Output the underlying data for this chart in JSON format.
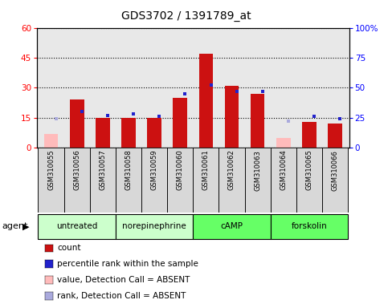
{
  "title": "GDS3702 / 1391789_at",
  "samples": [
    "GSM310055",
    "GSM310056",
    "GSM310057",
    "GSM310058",
    "GSM310059",
    "GSM310060",
    "GSM310061",
    "GSM310062",
    "GSM310063",
    "GSM310064",
    "GSM310065",
    "GSM310066"
  ],
  "count_values": [
    null,
    24,
    15,
    15,
    15,
    25,
    47,
    31,
    27,
    null,
    13,
    12
  ],
  "count_absent": [
    7,
    null,
    null,
    null,
    null,
    null,
    null,
    null,
    null,
    5,
    null,
    null
  ],
  "rank_values": [
    null,
    30,
    27,
    28,
    26,
    45,
    52,
    47,
    47,
    null,
    26,
    24
  ],
  "rank_absent": [
    24,
    null,
    null,
    null,
    null,
    null,
    null,
    null,
    null,
    22,
    null,
    null
  ],
  "groups": [
    {
      "label": "untreated",
      "indices": [
        0,
        1,
        2
      ]
    },
    {
      "label": "norepinephrine",
      "indices": [
        3,
        4,
        5
      ]
    },
    {
      "label": "cAMP",
      "indices": [
        6,
        7,
        8
      ]
    },
    {
      "label": "forskolin",
      "indices": [
        9,
        10,
        11
      ]
    }
  ],
  "group_colors": [
    "#ccffcc",
    "#ccffcc",
    "#66ff66",
    "#66ff66"
  ],
  "ylim_left": [
    0,
    60
  ],
  "ylim_right": [
    0,
    100
  ],
  "yticks_left": [
    0,
    15,
    30,
    45,
    60
  ],
  "yticks_right": [
    0,
    25,
    50,
    75,
    100
  ],
  "bar_color_red": "#cc1111",
  "bar_color_pink": "#ffbbbb",
  "dot_color_blue": "#2222cc",
  "dot_color_lightblue": "#aaaadd",
  "background_color": "#ffffff",
  "plot_bg": "#e8e8e8",
  "legend_items": [
    {
      "color": "#cc1111",
      "label": "count",
      "type": "square"
    },
    {
      "color": "#2222cc",
      "label": "percentile rank within the sample",
      "type": "square"
    },
    {
      "color": "#ffbbbb",
      "label": "value, Detection Call = ABSENT",
      "type": "square"
    },
    {
      "color": "#aaaadd",
      "label": "rank, Detection Call = ABSENT",
      "type": "square"
    }
  ]
}
